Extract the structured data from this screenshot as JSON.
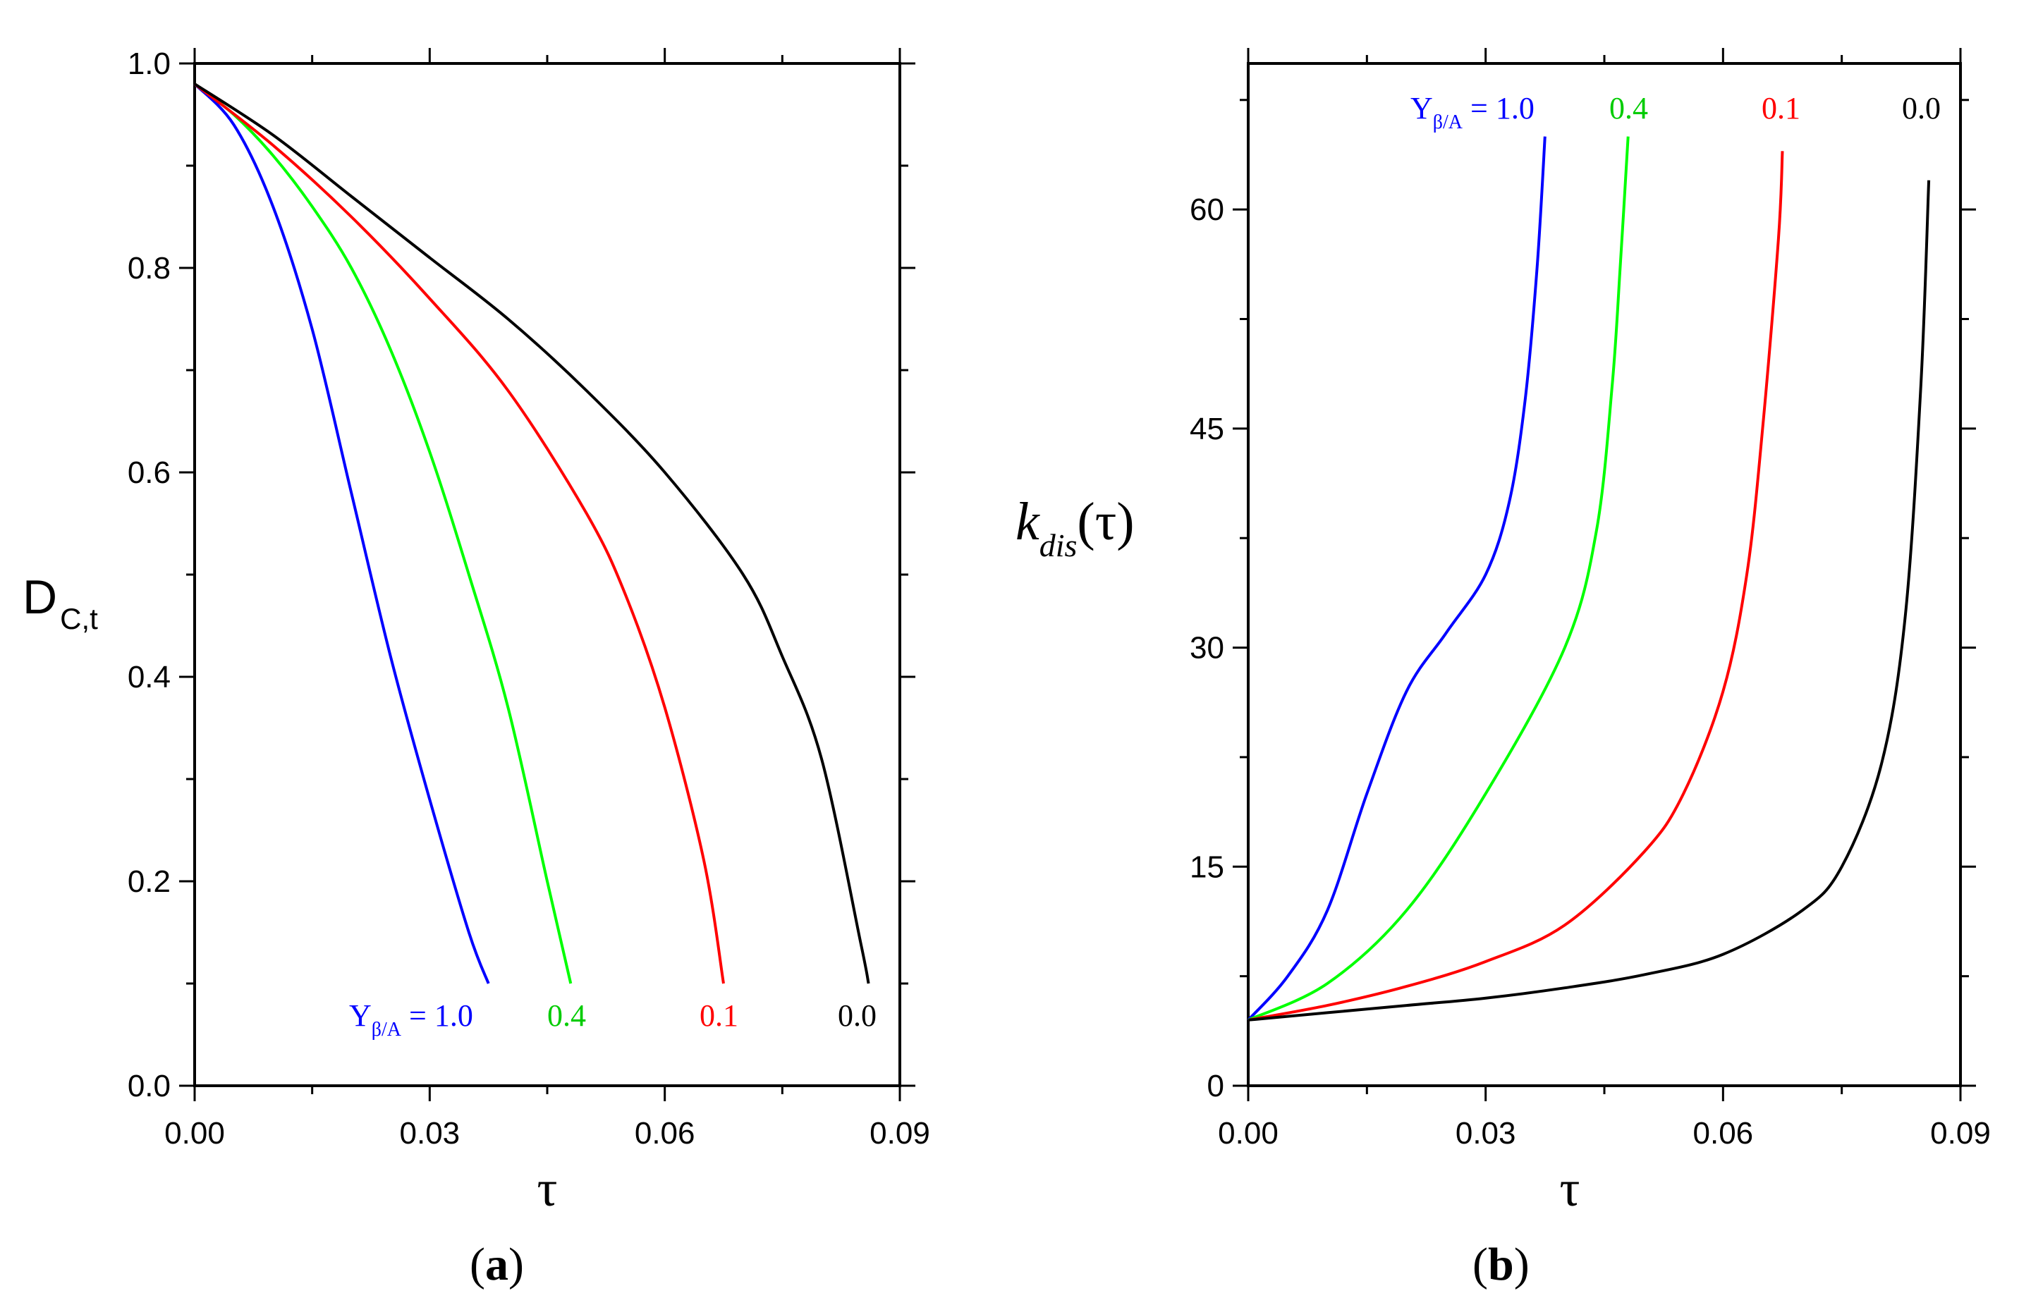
{
  "chart_data": [
    {
      "panel": "a",
      "type": "line",
      "panel_label_open": "(",
      "panel_label_letter": "a",
      "panel_label_close": ")",
      "xlabel": "τ",
      "ylabel_main": "D",
      "ylabel_sub": "C,t",
      "xlim": [
        0,
        0.09
      ],
      "ylim": [
        0,
        1.0
      ],
      "xticks": [
        0,
        0.03,
        0.06,
        0.09
      ],
      "xtick_labels": [
        "0.00",
        "0.03",
        "0.06",
        "0.09"
      ],
      "yticks": [
        0,
        0.2,
        0.4,
        0.6,
        0.8,
        1.0
      ],
      "ytick_labels": [
        "0.0",
        "0.2",
        "0.4",
        "0.6",
        "0.8",
        "1.0"
      ],
      "label_prefix": "Y",
      "label_sub": "β/A",
      "label_eq": " = ",
      "series": [
        {
          "name": "1.0",
          "color": "#0000ff",
          "x": [
            0,
            0.005,
            0.01,
            0.015,
            0.02,
            0.025,
            0.03,
            0.035,
            0.0375
          ],
          "y": [
            0.98,
            0.94,
            0.86,
            0.74,
            0.58,
            0.42,
            0.28,
            0.15,
            0.1
          ]
        },
        {
          "name": "0.4",
          "color": "#00ff00",
          "x": [
            0,
            0.005,
            0.01,
            0.015,
            0.02,
            0.025,
            0.03,
            0.035,
            0.04,
            0.045,
            0.048
          ],
          "y": [
            0.98,
            0.95,
            0.91,
            0.86,
            0.8,
            0.72,
            0.62,
            0.5,
            0.37,
            0.2,
            0.1
          ]
        },
        {
          "name": "0.1",
          "color": "#ff0000",
          "x": [
            0,
            0.01,
            0.02,
            0.03,
            0.04,
            0.05,
            0.055,
            0.06,
            0.065,
            0.0675
          ],
          "y": [
            0.98,
            0.92,
            0.85,
            0.77,
            0.68,
            0.56,
            0.48,
            0.37,
            0.22,
            0.1
          ]
        },
        {
          "name": "0.0",
          "color": "#000000",
          "x": [
            0,
            0.01,
            0.02,
            0.03,
            0.04,
            0.05,
            0.06,
            0.07,
            0.075,
            0.08,
            0.085,
            0.086
          ],
          "y": [
            0.98,
            0.93,
            0.87,
            0.81,
            0.75,
            0.68,
            0.6,
            0.5,
            0.42,
            0.32,
            0.14,
            0.1
          ]
        }
      ]
    },
    {
      "panel": "b",
      "type": "line",
      "panel_label_open": "(",
      "panel_label_letter": "b",
      "panel_label_close": ")",
      "xlabel": "τ",
      "ylabel_main": "k",
      "ylabel_sub": "dis",
      "ylabel_tail": "(τ)",
      "xlim": [
        0,
        0.09
      ],
      "ylim": [
        0,
        70
      ],
      "xticks": [
        0,
        0.03,
        0.06,
        0.09
      ],
      "xtick_labels": [
        "0.00",
        "0.03",
        "0.06",
        "0.09"
      ],
      "yticks": [
        0,
        15,
        30,
        45,
        60
      ],
      "ytick_labels": [
        "0",
        "15",
        "30",
        "45",
        "60"
      ],
      "label_prefix": "Y",
      "label_sub": "β/A",
      "label_eq": " = ",
      "series": [
        {
          "name": "1.0",
          "color": "#0000ff",
          "x": [
            0,
            0.005,
            0.01,
            0.015,
            0.02,
            0.025,
            0.03,
            0.033,
            0.035,
            0.0365,
            0.0375
          ],
          "y": [
            4.5,
            7.5,
            12,
            20,
            27,
            31,
            35,
            40,
            47,
            56,
            65
          ]
        },
        {
          "name": "0.4",
          "color": "#00ff00",
          "x": [
            0,
            0.01,
            0.02,
            0.03,
            0.04,
            0.044,
            0.046,
            0.047,
            0.048
          ],
          "y": [
            4.5,
            7,
            12,
            20,
            30,
            38,
            48,
            56,
            65
          ]
        },
        {
          "name": "0.1",
          "color": "#ff0000",
          "x": [
            0,
            0.01,
            0.02,
            0.03,
            0.04,
            0.05,
            0.055,
            0.06,
            0.063,
            0.065,
            0.067,
            0.0675
          ],
          "y": [
            4.5,
            5.5,
            6.8,
            8.5,
            11,
            16,
            20,
            27,
            35,
            45,
            58,
            64
          ]
        },
        {
          "name": "0.0",
          "color": "#000000",
          "x": [
            0,
            0.01,
            0.02,
            0.03,
            0.04,
            0.05,
            0.06,
            0.07,
            0.075,
            0.08,
            0.083,
            0.085,
            0.086
          ],
          "y": [
            4.5,
            5,
            5.5,
            6,
            6.7,
            7.6,
            9,
            12,
            15,
            22,
            32,
            48,
            62
          ]
        }
      ]
    }
  ]
}
